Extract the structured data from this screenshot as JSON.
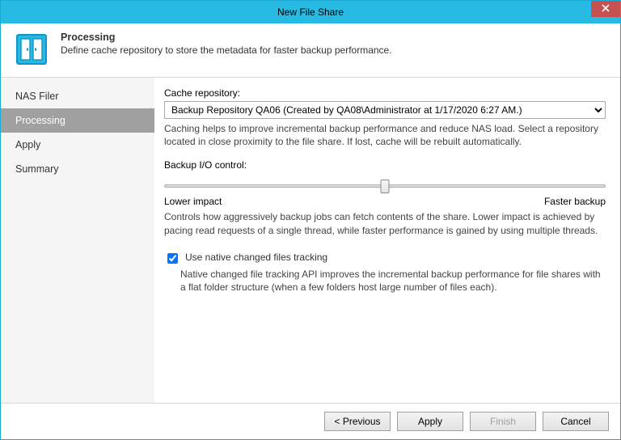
{
  "window": {
    "title": "New File Share"
  },
  "header": {
    "heading": "Processing",
    "subheading": "Define cache repository to store the metadata for faster backup performance.",
    "icon_colors": {
      "frame": "#0f96c8",
      "fill": "#ffffff",
      "interior": "#29b9e0"
    }
  },
  "sidebar": {
    "items": [
      {
        "label": "NAS Filer",
        "selected": false
      },
      {
        "label": "Processing",
        "selected": true
      },
      {
        "label": "Apply",
        "selected": false
      },
      {
        "label": "Summary",
        "selected": false
      }
    ]
  },
  "cache": {
    "label": "Cache repository:",
    "value": "Backup Repository QA06 (Created by QA08\\Administrator at 1/17/2020 6:27 AM.)",
    "helper": "Caching helps to improve incremental backup performance and reduce NAS load. Select a repository located in close proximity to the file share. If lost, cache will be rebuilt automatically."
  },
  "io": {
    "label": "Backup I/O control:",
    "value_percent": 50,
    "lower_label": "Lower impact",
    "upper_label": "Faster backup",
    "helper": "Controls how aggressively backup jobs can fetch contents of the share. Lower impact is achieved by pacing read requests of a single thread, while faster performance is gained by using multiple threads."
  },
  "tracking": {
    "checkbox_label": "Use native changed files tracking",
    "checked": true,
    "helper": "Native changed file tracking API improves the incremental backup performance for file shares with a flat folder structure (when a few folders host large number of files each)."
  },
  "footer": {
    "previous": "< Previous",
    "apply": "Apply",
    "finish": "Finish",
    "cancel": "Cancel"
  },
  "style": {
    "accent": "#27bbe3",
    "close_button": "#c75050",
    "sidebar_bg": "#f5f5f5",
    "sidebar_selected_bg": "#a0a0a0"
  }
}
